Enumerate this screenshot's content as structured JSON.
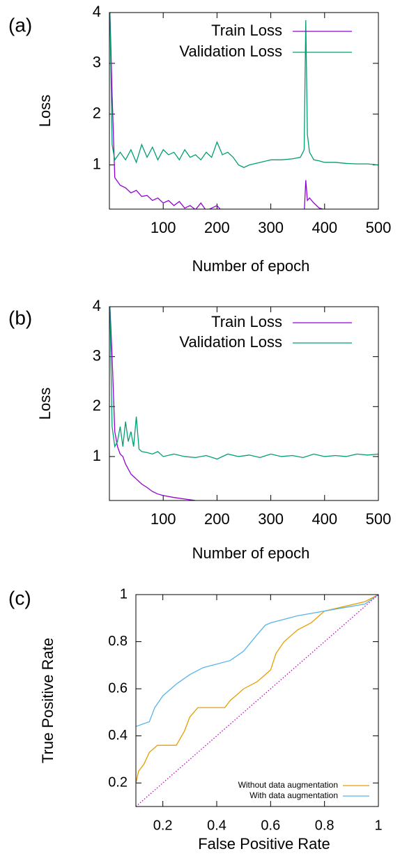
{
  "chart_data": [
    {
      "type": "line",
      "panel_label": "(a)",
      "xlabel": "Number of epoch",
      "ylabel": "Loss",
      "xlim": [
        0,
        500
      ],
      "ylim": [
        0.13,
        4
      ],
      "xticks": [
        100,
        200,
        300,
        400,
        500
      ],
      "yticks": [
        1,
        2,
        3,
        4
      ],
      "legend": "top-right",
      "x": [
        1,
        5,
        10,
        20,
        30,
        40,
        50,
        60,
        70,
        80,
        90,
        100,
        110,
        120,
        130,
        140,
        150,
        160,
        170,
        180,
        190,
        200,
        210,
        220,
        230,
        240,
        250,
        260,
        280,
        300,
        320,
        340,
        355,
        362,
        365,
        368,
        372,
        380,
        390,
        400,
        410,
        420,
        440,
        460,
        480,
        500
      ],
      "series": [
        {
          "name": "Train Loss",
          "color": "#9400d3",
          "values": [
            4.0,
            2.4,
            0.75,
            0.6,
            0.55,
            0.45,
            0.5,
            0.38,
            0.4,
            0.3,
            0.35,
            0.25,
            0.3,
            0.2,
            0.28,
            0.15,
            0.2,
            0.12,
            0.25,
            0.1,
            0.15,
            0.2,
            0.08,
            0.05,
            0.04,
            0.03,
            0.03,
            0.02,
            0.02,
            0.02,
            0.02,
            0.02,
            0.02,
            0.02,
            0.7,
            0.3,
            0.35,
            0.25,
            0.15,
            0.12,
            0.1,
            0.08,
            0.06,
            0.05,
            0.04,
            0.03
          ]
        },
        {
          "name": "Validation Loss",
          "color": "#009e73",
          "values": [
            4.0,
            1.4,
            1.1,
            1.25,
            1.1,
            1.3,
            1.05,
            1.4,
            1.15,
            1.35,
            1.1,
            1.3,
            1.2,
            1.25,
            1.1,
            1.3,
            1.15,
            1.2,
            1.1,
            1.25,
            1.15,
            1.45,
            1.2,
            1.25,
            1.15,
            1.0,
            0.95,
            1.0,
            1.05,
            1.1,
            1.1,
            1.12,
            1.15,
            1.3,
            3.85,
            1.6,
            1.25,
            1.1,
            1.08,
            1.05,
            1.05,
            1.05,
            1.03,
            1.02,
            1.02,
            1.0
          ]
        }
      ]
    },
    {
      "type": "line",
      "panel_label": "(b)",
      "xlabel": "Number of epoch",
      "ylabel": "Loss",
      "xlim": [
        0,
        500
      ],
      "ylim": [
        0.12,
        4
      ],
      "xticks": [
        100,
        200,
        300,
        400,
        500
      ],
      "yticks": [
        1,
        2,
        3,
        4
      ],
      "legend": "top-right",
      "x": [
        1,
        5,
        10,
        15,
        20,
        25,
        30,
        35,
        40,
        45,
        50,
        55,
        60,
        70,
        80,
        90,
        100,
        120,
        140,
        160,
        180,
        200,
        220,
        240,
        260,
        280,
        300,
        320,
        340,
        360,
        380,
        400,
        420,
        440,
        460,
        480,
        500
      ],
      "series": [
        {
          "name": "Train Loss",
          "color": "#9400d3",
          "values": [
            4.0,
            3.0,
            1.5,
            1.2,
            1.05,
            1.0,
            0.85,
            0.75,
            0.65,
            0.6,
            0.55,
            0.5,
            0.45,
            0.38,
            0.3,
            0.25,
            0.22,
            0.18,
            0.15,
            0.12,
            0.1,
            0.08,
            0.06,
            0.05,
            0.04,
            0.04,
            0.03,
            0.03,
            0.03,
            0.03,
            0.02,
            0.02,
            0.02,
            0.02,
            0.02,
            0.02,
            0.02
          ]
        },
        {
          "name": "Validation Loss",
          "color": "#009e73",
          "values": [
            4.0,
            1.6,
            1.2,
            1.3,
            1.6,
            1.2,
            1.7,
            1.3,
            1.5,
            1.2,
            1.8,
            1.15,
            1.1,
            1.08,
            1.05,
            1.1,
            1.0,
            1.05,
            1.0,
            0.98,
            1.02,
            0.95,
            1.05,
            1.0,
            1.03,
            0.98,
            1.05,
            1.0,
            1.02,
            0.98,
            1.05,
            1.0,
            1.02,
            1.0,
            1.05,
            1.03,
            1.05
          ]
        }
      ]
    },
    {
      "type": "line",
      "panel_label": "(c)",
      "xlabel": "False Positive Rate",
      "ylabel": "True Positive Rate",
      "xlim": [
        0.1,
        1
      ],
      "ylim": [
        0.1,
        1
      ],
      "xticks": [
        0.2,
        0.4,
        0.6,
        0.8,
        1
      ],
      "yticks": [
        0.2,
        0.4,
        0.6,
        0.8,
        1
      ],
      "legend": "bottom-right",
      "series": [
        {
          "name": "Without data augmentation",
          "color": "#e69f00",
          "x": [
            0.1,
            0.11,
            0.13,
            0.15,
            0.18,
            0.25,
            0.28,
            0.3,
            0.33,
            0.43,
            0.45,
            0.5,
            0.55,
            0.6,
            0.62,
            0.65,
            0.7,
            0.75,
            0.8,
            0.95,
            1.0
          ],
          "values": [
            0.2,
            0.25,
            0.28,
            0.33,
            0.36,
            0.36,
            0.42,
            0.48,
            0.52,
            0.52,
            0.55,
            0.6,
            0.63,
            0.68,
            0.75,
            0.8,
            0.85,
            0.88,
            0.93,
            0.97,
            1.0
          ]
        },
        {
          "name": "With data augmentation",
          "color": "#56b4e9",
          "x": [
            0.1,
            0.15,
            0.17,
            0.2,
            0.25,
            0.3,
            0.35,
            0.45,
            0.5,
            0.55,
            0.58,
            0.6,
            0.7,
            0.8,
            0.95,
            1.0
          ],
          "values": [
            0.44,
            0.46,
            0.52,
            0.57,
            0.62,
            0.66,
            0.69,
            0.72,
            0.76,
            0.83,
            0.87,
            0.88,
            0.91,
            0.93,
            0.96,
            1.0
          ]
        },
        {
          "color": "#c000c0",
          "style": "dotted",
          "x": [
            0.1,
            1
          ],
          "values": [
            0.1,
            1
          ]
        }
      ]
    }
  ]
}
